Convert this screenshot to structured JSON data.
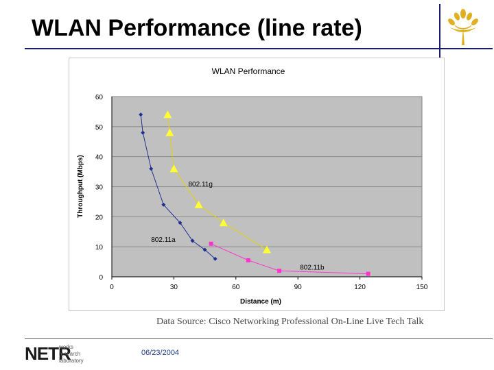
{
  "slide": {
    "title": "WLAN Performance (line rate)",
    "source": "Data Source: Cisco Networking Professional On-Line Live Tech Talk",
    "date": "06/23/2004",
    "footer_logo": {
      "word": "NETR",
      "lines": [
        "works",
        "research",
        "laboratory"
      ]
    }
  },
  "colors": {
    "plot_bg": "#c0c0c0",
    "series_a": "#1f2f8f",
    "series_g": "#ffff33",
    "series_g_line": "#e6d200",
    "series_b": "#ff33cc",
    "logo_gold": "#e0b020",
    "rule": "#1a1a6e"
  },
  "chart_data": {
    "type": "scatter",
    "title": "WLAN Performance",
    "xlabel": "Distance (m)",
    "ylabel": "Throughput (Mbps)",
    "xlim": [
      0,
      150
    ],
    "ylim": [
      0,
      60
    ],
    "xticks": [
      0,
      30,
      60,
      90,
      120,
      150
    ],
    "yticks": [
      0,
      10,
      20,
      30,
      40,
      50,
      60
    ],
    "grid": "horizontal",
    "series": [
      {
        "name": "802.11a",
        "marker": "diamond",
        "color_key": "series_a",
        "x": [
          14,
          15,
          19,
          25,
          33,
          39,
          45,
          50
        ],
        "y": [
          54,
          48,
          36,
          24,
          18,
          12,
          9,
          6
        ]
      },
      {
        "name": "802.11g",
        "marker": "triangle",
        "color_key": "series_g",
        "x": [
          27,
          28,
          30,
          42,
          54,
          75
        ],
        "y": [
          54,
          48,
          36,
          24,
          18,
          9
        ]
      },
      {
        "name": "802.11b",
        "marker": "square",
        "color_key": "series_b",
        "x": [
          48,
          66,
          81,
          124
        ],
        "y": [
          11,
          5.5,
          2,
          1
        ]
      }
    ],
    "annotations": [
      {
        "text": "802.11g",
        "x": 37,
        "y": 31
      },
      {
        "text": "802.11a",
        "x": 19,
        "y": 12.5
      },
      {
        "text": "802.11b",
        "x": 91,
        "y": 3.3
      }
    ]
  }
}
